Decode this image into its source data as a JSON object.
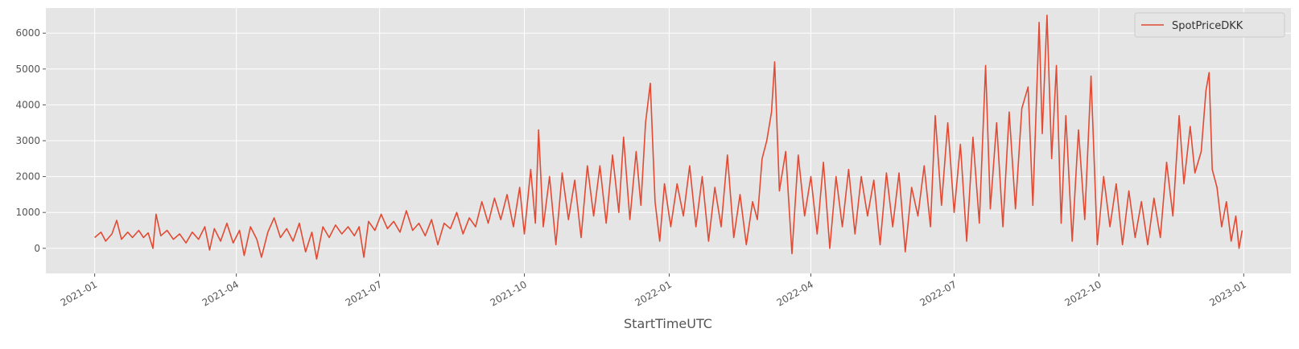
{
  "chart_data": {
    "type": "line",
    "title": "",
    "xlabel": "StartTimeUTC",
    "ylabel": "",
    "x_axis": "date",
    "xlim": [
      "2020-12-01",
      "2023-01-31"
    ],
    "ylim": [
      -700,
      6700
    ],
    "grid": true,
    "legend_placement": "top-right",
    "background": "#e5e5e5",
    "grid_color": "#ffffff",
    "x_ticks": [
      "2021-01",
      "2021-04",
      "2021-07",
      "2021-10",
      "2022-01",
      "2022-04",
      "2022-07",
      "2022-10",
      "2023-01"
    ],
    "y_ticks": [
      0,
      1000,
      2000,
      3000,
      4000,
      5000,
      6000
    ],
    "series": [
      {
        "name": "SpotPriceDKK",
        "color": "#e24a33",
        "points": [
          [
            "2021-01-01",
            300
          ],
          [
            "2021-01-05",
            450
          ],
          [
            "2021-01-08",
            200
          ],
          [
            "2021-01-12",
            400
          ],
          [
            "2021-01-15",
            780
          ],
          [
            "2021-01-18",
            250
          ],
          [
            "2021-01-22",
            450
          ],
          [
            "2021-01-25",
            300
          ],
          [
            "2021-01-29",
            500
          ],
          [
            "2021-02-01",
            300
          ],
          [
            "2021-02-04",
            430
          ],
          [
            "2021-02-07",
            0
          ],
          [
            "2021-02-09",
            950
          ],
          [
            "2021-02-12",
            350
          ],
          [
            "2021-02-16",
            500
          ],
          [
            "2021-02-20",
            250
          ],
          [
            "2021-02-24",
            400
          ],
          [
            "2021-02-28",
            150
          ],
          [
            "2021-03-04",
            450
          ],
          [
            "2021-03-08",
            250
          ],
          [
            "2021-03-12",
            600
          ],
          [
            "2021-03-15",
            -50
          ],
          [
            "2021-03-18",
            550
          ],
          [
            "2021-03-22",
            200
          ],
          [
            "2021-03-26",
            700
          ],
          [
            "2021-03-30",
            150
          ],
          [
            "2021-04-03",
            500
          ],
          [
            "2021-04-06",
            -200
          ],
          [
            "2021-04-10",
            600
          ],
          [
            "2021-04-14",
            250
          ],
          [
            "2021-04-17",
            -250
          ],
          [
            "2021-04-21",
            450
          ],
          [
            "2021-04-25",
            850
          ],
          [
            "2021-04-29",
            300
          ],
          [
            "2021-05-03",
            550
          ],
          [
            "2021-05-07",
            200
          ],
          [
            "2021-05-11",
            700
          ],
          [
            "2021-05-15",
            -100
          ],
          [
            "2021-05-19",
            450
          ],
          [
            "2021-05-22",
            -300
          ],
          [
            "2021-05-26",
            600
          ],
          [
            "2021-05-30",
            300
          ],
          [
            "2021-06-03",
            650
          ],
          [
            "2021-06-07",
            400
          ],
          [
            "2021-06-11",
            600
          ],
          [
            "2021-06-15",
            350
          ],
          [
            "2021-06-18",
            600
          ],
          [
            "2021-06-21",
            -250
          ],
          [
            "2021-06-24",
            750
          ],
          [
            "2021-06-28",
            500
          ],
          [
            "2021-07-02",
            950
          ],
          [
            "2021-07-06",
            550
          ],
          [
            "2021-07-10",
            750
          ],
          [
            "2021-07-14",
            450
          ],
          [
            "2021-07-18",
            1050
          ],
          [
            "2021-07-22",
            500
          ],
          [
            "2021-07-26",
            700
          ],
          [
            "2021-07-30",
            350
          ],
          [
            "2021-08-03",
            800
          ],
          [
            "2021-08-07",
            100
          ],
          [
            "2021-08-11",
            700
          ],
          [
            "2021-08-15",
            550
          ],
          [
            "2021-08-19",
            1000
          ],
          [
            "2021-08-23",
            400
          ],
          [
            "2021-08-27",
            850
          ],
          [
            "2021-08-31",
            600
          ],
          [
            "2021-09-04",
            1300
          ],
          [
            "2021-09-08",
            700
          ],
          [
            "2021-09-12",
            1400
          ],
          [
            "2021-09-16",
            800
          ],
          [
            "2021-09-20",
            1500
          ],
          [
            "2021-09-24",
            600
          ],
          [
            "2021-09-28",
            1700
          ],
          [
            "2021-10-01",
            400
          ],
          [
            "2021-10-05",
            2200
          ],
          [
            "2021-10-08",
            700
          ],
          [
            "2021-10-10",
            3300
          ],
          [
            "2021-10-13",
            600
          ],
          [
            "2021-10-17",
            2000
          ],
          [
            "2021-10-21",
            100
          ],
          [
            "2021-10-25",
            2100
          ],
          [
            "2021-10-29",
            800
          ],
          [
            "2021-11-02",
            1900
          ],
          [
            "2021-11-06",
            300
          ],
          [
            "2021-11-10",
            2300
          ],
          [
            "2021-11-14",
            900
          ],
          [
            "2021-11-18",
            2300
          ],
          [
            "2021-11-22",
            700
          ],
          [
            "2021-11-26",
            2600
          ],
          [
            "2021-11-30",
            1000
          ],
          [
            "2021-12-03",
            3100
          ],
          [
            "2021-12-07",
            800
          ],
          [
            "2021-12-11",
            2700
          ],
          [
            "2021-12-14",
            1200
          ],
          [
            "2021-12-17",
            3500
          ],
          [
            "2021-12-20",
            4600
          ],
          [
            "2021-12-23",
            1300
          ],
          [
            "2021-12-26",
            200
          ],
          [
            "2021-12-29",
            1800
          ],
          [
            "2022-01-02",
            600
          ],
          [
            "2022-01-06",
            1800
          ],
          [
            "2022-01-10",
            900
          ],
          [
            "2022-01-14",
            2300
          ],
          [
            "2022-01-18",
            600
          ],
          [
            "2022-01-22",
            2000
          ],
          [
            "2022-01-26",
            200
          ],
          [
            "2022-01-30",
            1700
          ],
          [
            "2022-02-03",
            600
          ],
          [
            "2022-02-07",
            2600
          ],
          [
            "2022-02-11",
            300
          ],
          [
            "2022-02-15",
            1500
          ],
          [
            "2022-02-19",
            100
          ],
          [
            "2022-02-23",
            1300
          ],
          [
            "2022-02-26",
            800
          ],
          [
            "2022-03-01",
            2500
          ],
          [
            "2022-03-04",
            3000
          ],
          [
            "2022-03-07",
            3800
          ],
          [
            "2022-03-09",
            5200
          ],
          [
            "2022-03-12",
            1600
          ],
          [
            "2022-03-16",
            2700
          ],
          [
            "2022-03-20",
            -150
          ],
          [
            "2022-03-24",
            2600
          ],
          [
            "2022-03-28",
            900
          ],
          [
            "2022-04-01",
            2000
          ],
          [
            "2022-04-05",
            400
          ],
          [
            "2022-04-09",
            2400
          ],
          [
            "2022-04-13",
            0
          ],
          [
            "2022-04-17",
            2000
          ],
          [
            "2022-04-21",
            600
          ],
          [
            "2022-04-25",
            2200
          ],
          [
            "2022-04-29",
            400
          ],
          [
            "2022-05-03",
            2000
          ],
          [
            "2022-05-07",
            900
          ],
          [
            "2022-05-11",
            1900
          ],
          [
            "2022-05-15",
            100
          ],
          [
            "2022-05-19",
            2100
          ],
          [
            "2022-05-23",
            600
          ],
          [
            "2022-05-27",
            2100
          ],
          [
            "2022-05-31",
            -100
          ],
          [
            "2022-06-04",
            1700
          ],
          [
            "2022-06-08",
            900
          ],
          [
            "2022-06-12",
            2300
          ],
          [
            "2022-06-16",
            600
          ],
          [
            "2022-06-19",
            3700
          ],
          [
            "2022-06-23",
            1200
          ],
          [
            "2022-06-27",
            3500
          ],
          [
            "2022-07-01",
            1000
          ],
          [
            "2022-07-05",
            2900
          ],
          [
            "2022-07-09",
            200
          ],
          [
            "2022-07-13",
            3100
          ],
          [
            "2022-07-17",
            700
          ],
          [
            "2022-07-21",
            5100
          ],
          [
            "2022-07-24",
            1100
          ],
          [
            "2022-07-28",
            3500
          ],
          [
            "2022-08-01",
            600
          ],
          [
            "2022-08-05",
            3800
          ],
          [
            "2022-08-09",
            1100
          ],
          [
            "2022-08-13",
            3900
          ],
          [
            "2022-08-17",
            4500
          ],
          [
            "2022-08-20",
            1200
          ],
          [
            "2022-08-24",
            6300
          ],
          [
            "2022-08-26",
            3200
          ],
          [
            "2022-08-29",
            6500
          ],
          [
            "2022-09-01",
            2500
          ],
          [
            "2022-09-04",
            5100
          ],
          [
            "2022-09-07",
            700
          ],
          [
            "2022-09-10",
            3700
          ],
          [
            "2022-09-14",
            200
          ],
          [
            "2022-09-18",
            3300
          ],
          [
            "2022-09-22",
            800
          ],
          [
            "2022-09-26",
            4800
          ],
          [
            "2022-09-30",
            100
          ],
          [
            "2022-10-04",
            2000
          ],
          [
            "2022-10-08",
            600
          ],
          [
            "2022-10-12",
            1800
          ],
          [
            "2022-10-16",
            100
          ],
          [
            "2022-10-20",
            1600
          ],
          [
            "2022-10-24",
            300
          ],
          [
            "2022-10-28",
            1300
          ],
          [
            "2022-11-01",
            100
          ],
          [
            "2022-11-05",
            1400
          ],
          [
            "2022-11-09",
            300
          ],
          [
            "2022-11-13",
            2400
          ],
          [
            "2022-11-17",
            900
          ],
          [
            "2022-11-21",
            3700
          ],
          [
            "2022-11-24",
            1800
          ],
          [
            "2022-11-28",
            3400
          ],
          [
            "2022-12-01",
            2100
          ],
          [
            "2022-12-05",
            2700
          ],
          [
            "2022-12-08",
            4400
          ],
          [
            "2022-12-10",
            4900
          ],
          [
            "2022-12-12",
            2200
          ],
          [
            "2022-12-15",
            1700
          ],
          [
            "2022-12-18",
            600
          ],
          [
            "2022-12-21",
            1300
          ],
          [
            "2022-12-24",
            200
          ],
          [
            "2022-12-27",
            900
          ],
          [
            "2022-12-29",
            0
          ],
          [
            "2022-12-31",
            500
          ]
        ]
      }
    ]
  }
}
